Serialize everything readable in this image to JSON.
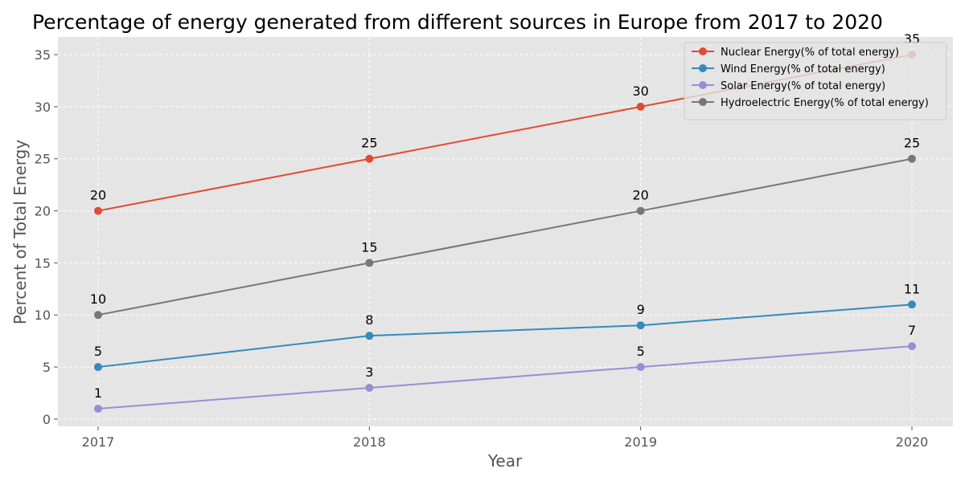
{
  "chart_data": {
    "type": "line",
    "title": "Percentage of energy generated from different sources in Europe from 2017 to 2020",
    "xlabel": "Year",
    "ylabel": "Percent of Total Energy",
    "x": [
      "2017",
      "2018",
      "2019",
      "2020"
    ],
    "ylim": [
      -0.7,
      36.7
    ],
    "yticks": [
      0,
      5,
      10,
      15,
      20,
      25,
      30,
      35
    ],
    "grid": true,
    "legend_position": "top-right",
    "series": [
      {
        "name": "Nuclear Energy(% of total energy)",
        "values": [
          20,
          25,
          30,
          35
        ],
        "color": "#E24A33"
      },
      {
        "name": "Wind Energy(% of total energy)",
        "values": [
          5,
          8,
          9,
          11
        ],
        "color": "#348ABD"
      },
      {
        "name": "Solar Energy(% of total energy)",
        "values": [
          1,
          3,
          5,
          7
        ],
        "color": "#988ED5"
      },
      {
        "name": "Hydroelectric Energy(% of total energy)",
        "values": [
          10,
          15,
          20,
          25
        ],
        "color": "#777777"
      }
    ]
  }
}
